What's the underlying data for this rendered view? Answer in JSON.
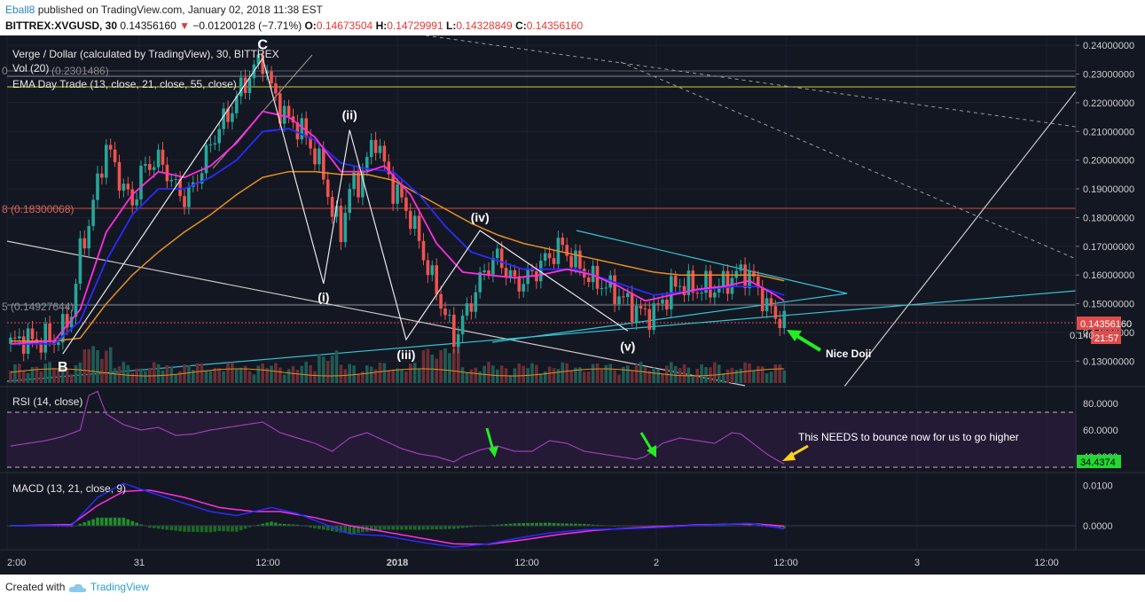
{
  "header": {
    "username": "Eball8",
    "published_text": "published on TradingView.com, January 02, 2018 11:38 EST",
    "symbol_line": "BITTREX:XVGUSD, 30",
    "last_price": "0.14356160",
    "change_arrow": "▼",
    "change": "−0.01200128 (−7.71%)",
    "o_label": "O:",
    "o_value": "0.14673504",
    "h_label": "H:",
    "h_value": "0.14729991",
    "l_label": "L:",
    "l_value": "0.14328849",
    "c_label": "C:",
    "c_value": "0.14356160"
  },
  "footer": {
    "created_with": "Created with",
    "brand": "TradingView"
  },
  "legend": {
    "main": "Verge / Dollar (calculated by TradingView), 30, BITTREX",
    "vol": "Vol (20)",
    "ema": "EMA Day Trade (13, close, 21, close, 55, close)",
    "rsi": "RSI (14, close)",
    "macd": "MACD (13, 21, close, 9)"
  },
  "fib_labels": {
    "top": "(0.2301486)",
    "top_prefix": "0",
    "mid": "(0.18300068)",
    "mid_prefix": "8",
    "low": "(0.14927644)",
    "low_prefix": "5"
  },
  "waves": {
    "B": "B",
    "C": "C",
    "i": "(i)",
    "ii": "(ii)",
    "iii": "(iii)",
    "iv": "(iv)",
    "v": "(v)"
  },
  "annotations": {
    "doji": "Nice Doji",
    "rsi_note": "This NEEDS to bounce now for us to go higher"
  },
  "price_axis": {
    "ticks": [
      "0.24000000",
      "0.23000000",
      "0.22000000",
      "0.21000000",
      "0.20000000",
      "0.19000000",
      "0.18000000",
      "0.17000000",
      "0.16000000",
      "0.15000000",
      "0.14000000",
      "0.13000000"
    ],
    "current_price": "0.14356160",
    "countdown": "21:57",
    "partial_tick": "0.140"
  },
  "rsi_axis": {
    "ticks": [
      "80.0000",
      "60.0000",
      "40.0000"
    ],
    "current": "34.4374"
  },
  "macd_axis": {
    "ticks": [
      "0.0100",
      "0.0000"
    ]
  },
  "time_axis": {
    "ticks": [
      "2:00",
      "31",
      "12:00",
      "2018",
      "12:00",
      "2",
      "12:00",
      "3",
      "12:00"
    ]
  },
  "colors": {
    "background": "#131722",
    "bull": "#26a69a",
    "bear": "#ef5350",
    "ema13": "#ff2ee0",
    "ema21": "#2a2bff",
    "ema55": "#e58f22",
    "trend_cyan": "#33c6d6",
    "rsi_line": "#9c3fb0",
    "macd_line": "#2a2bff",
    "signal_line": "#ff2ee0",
    "arrow_green": "#22ee22",
    "arrow_yellow": "#ffd21a"
  },
  "chart_data": {
    "type": "candlestick",
    "interval": "30",
    "symbol": "BITTREX:XVGUSD",
    "ylim": [
      0.123,
      0.2425
    ],
    "rsi_ylim": [
      30,
      90
    ],
    "macd_ylim": [
      -0.0055,
      0.0125
    ],
    "price_path": [
      [
        0,
        0.136
      ],
      [
        3,
        0.138
      ],
      [
        6,
        0.1365
      ],
      [
        8,
        0.138
      ],
      [
        10,
        0.137
      ],
      [
        12,
        0.141
      ],
      [
        14,
        0.147
      ],
      [
        16,
        0.168
      ],
      [
        18,
        0.178
      ],
      [
        20,
        0.192
      ],
      [
        22,
        0.205
      ],
      [
        24,
        0.198
      ],
      [
        26,
        0.19
      ],
      [
        28,
        0.185
      ],
      [
        30,
        0.195
      ],
      [
        32,
        0.199
      ],
      [
        34,
        0.2
      ],
      [
        36,
        0.196
      ],
      [
        38,
        0.19
      ],
      [
        40,
        0.187
      ],
      [
        42,
        0.19
      ],
      [
        44,
        0.198
      ],
      [
        46,
        0.205
      ],
      [
        48,
        0.212
      ],
      [
        50,
        0.215
      ],
      [
        52,
        0.222
      ],
      [
        54,
        0.227
      ],
      [
        56,
        0.232
      ],
      [
        58,
        0.235
      ],
      [
        60,
        0.225
      ],
      [
        62,
        0.218
      ],
      [
        64,
        0.214
      ],
      [
        66,
        0.212
      ],
      [
        68,
        0.208
      ],
      [
        70,
        0.202
      ],
      [
        72,
        0.195
      ],
      [
        74,
        0.182
      ],
      [
        76,
        0.175
      ],
      [
        78,
        0.19
      ],
      [
        80,
        0.192
      ],
      [
        82,
        0.2
      ],
      [
        84,
        0.208
      ],
      [
        86,
        0.198
      ],
      [
        88,
        0.19
      ],
      [
        90,
        0.186
      ],
      [
        92,
        0.18
      ],
      [
        94,
        0.172
      ],
      [
        96,
        0.162
      ],
      [
        98,
        0.155
      ],
      [
        100,
        0.146
      ],
      [
        102,
        0.138
      ],
      [
        104,
        0.144
      ],
      [
        106,
        0.151
      ],
      [
        108,
        0.158
      ],
      [
        110,
        0.164
      ],
      [
        112,
        0.166
      ],
      [
        114,
        0.162
      ],
      [
        116,
        0.157
      ],
      [
        118,
        0.158
      ],
      [
        120,
        0.16
      ],
      [
        122,
        0.164
      ],
      [
        124,
        0.166
      ],
      [
        126,
        0.17
      ],
      [
        128,
        0.168
      ],
      [
        130,
        0.164
      ],
      [
        132,
        0.161
      ],
      [
        134,
        0.158
      ],
      [
        136,
        0.157
      ],
      [
        138,
        0.155
      ],
      [
        140,
        0.153
      ],
      [
        142,
        0.15
      ],
      [
        144,
        0.148
      ],
      [
        146,
        0.146
      ],
      [
        148,
        0.147
      ],
      [
        150,
        0.151
      ],
      [
        152,
        0.155
      ],
      [
        154,
        0.157
      ],
      [
        156,
        0.156
      ],
      [
        158,
        0.155
      ],
      [
        160,
        0.156
      ],
      [
        162,
        0.155
      ],
      [
        164,
        0.157
      ],
      [
        166,
        0.159
      ],
      [
        168,
        0.161
      ],
      [
        170,
        0.16
      ],
      [
        172,
        0.155
      ],
      [
        174,
        0.149
      ],
      [
        176,
        0.146
      ],
      [
        178,
        0.1436
      ]
    ],
    "ema13": [
      [
        0,
        0.136
      ],
      [
        10,
        0.137
      ],
      [
        16,
        0.148
      ],
      [
        22,
        0.175
      ],
      [
        28,
        0.188
      ],
      [
        34,
        0.196
      ],
      [
        40,
        0.194
      ],
      [
        46,
        0.198
      ],
      [
        52,
        0.206
      ],
      [
        58,
        0.217
      ],
      [
        64,
        0.215
      ],
      [
        70,
        0.208
      ],
      [
        76,
        0.196
      ],
      [
        82,
        0.196
      ],
      [
        86,
        0.198
      ],
      [
        92,
        0.188
      ],
      [
        98,
        0.171
      ],
      [
        104,
        0.161
      ],
      [
        110,
        0.16
      ],
      [
        116,
        0.159
      ],
      [
        122,
        0.16
      ],
      [
        128,
        0.162
      ],
      [
        134,
        0.16
      ],
      [
        140,
        0.156
      ],
      [
        146,
        0.151
      ],
      [
        152,
        0.153
      ],
      [
        158,
        0.155
      ],
      [
        164,
        0.156
      ],
      [
        170,
        0.158
      ],
      [
        176,
        0.153
      ],
      [
        178,
        0.151
      ]
    ],
    "ema21": [
      [
        0,
        0.136
      ],
      [
        10,
        0.136
      ],
      [
        16,
        0.144
      ],
      [
        22,
        0.165
      ],
      [
        28,
        0.181
      ],
      [
        34,
        0.19
      ],
      [
        40,
        0.19
      ],
      [
        46,
        0.194
      ],
      [
        52,
        0.2
      ],
      [
        58,
        0.21
      ],
      [
        64,
        0.211
      ],
      [
        70,
        0.207
      ],
      [
        76,
        0.199
      ],
      [
        82,
        0.197
      ],
      [
        88,
        0.196
      ],
      [
        94,
        0.188
      ],
      [
        100,
        0.177
      ],
      [
        106,
        0.168
      ],
      [
        112,
        0.165
      ],
      [
        118,
        0.162
      ],
      [
        124,
        0.162
      ],
      [
        130,
        0.162
      ],
      [
        136,
        0.159
      ],
      [
        142,
        0.156
      ],
      [
        148,
        0.153
      ],
      [
        154,
        0.154
      ],
      [
        160,
        0.155
      ],
      [
        166,
        0.156
      ],
      [
        172,
        0.156
      ],
      [
        178,
        0.153
      ]
    ],
    "ema55": [
      [
        0,
        0.137
      ],
      [
        10,
        0.137
      ],
      [
        16,
        0.138
      ],
      [
        22,
        0.15
      ],
      [
        28,
        0.16
      ],
      [
        34,
        0.168
      ],
      [
        40,
        0.175
      ],
      [
        46,
        0.181
      ],
      [
        52,
        0.188
      ],
      [
        58,
        0.194
      ],
      [
        64,
        0.196
      ],
      [
        70,
        0.196
      ],
      [
        76,
        0.195
      ],
      [
        82,
        0.195
      ],
      [
        88,
        0.193
      ],
      [
        94,
        0.188
      ],
      [
        100,
        0.183
      ],
      [
        106,
        0.178
      ],
      [
        112,
        0.174
      ],
      [
        118,
        0.171
      ],
      [
        124,
        0.169
      ],
      [
        130,
        0.167
      ],
      [
        136,
        0.165
      ],
      [
        142,
        0.163
      ],
      [
        148,
        0.161
      ],
      [
        154,
        0.16
      ],
      [
        160,
        0.16
      ],
      [
        166,
        0.16
      ],
      [
        172,
        0.16
      ],
      [
        178,
        0.158
      ]
    ],
    "rsi": [
      [
        0,
        48
      ],
      [
        4,
        50
      ],
      [
        8,
        52
      ],
      [
        12,
        55
      ],
      [
        16,
        60
      ],
      [
        18,
        86
      ],
      [
        20,
        89
      ],
      [
        22,
        72
      ],
      [
        26,
        64
      ],
      [
        30,
        60
      ],
      [
        34,
        62
      ],
      [
        38,
        56
      ],
      [
        42,
        57
      ],
      [
        46,
        60
      ],
      [
        50,
        62
      ],
      [
        54,
        64
      ],
      [
        58,
        66
      ],
      [
        62,
        58
      ],
      [
        66,
        54
      ],
      [
        70,
        50
      ],
      [
        74,
        44
      ],
      [
        78,
        54
      ],
      [
        82,
        58
      ],
      [
        86,
        52
      ],
      [
        90,
        46
      ],
      [
        94,
        42
      ],
      [
        98,
        40
      ],
      [
        100,
        38
      ],
      [
        102,
        36
      ],
      [
        104,
        40
      ],
      [
        108,
        45
      ],
      [
        112,
        48
      ],
      [
        116,
        44
      ],
      [
        120,
        44
      ],
      [
        124,
        52
      ],
      [
        128,
        50
      ],
      [
        132,
        44
      ],
      [
        136,
        42
      ],
      [
        140,
        40
      ],
      [
        144,
        38
      ],
      [
        146,
        40
      ],
      [
        150,
        50
      ],
      [
        154,
        54
      ],
      [
        158,
        52
      ],
      [
        162,
        50
      ],
      [
        166,
        58
      ],
      [
        168,
        57
      ],
      [
        170,
        52
      ],
      [
        174,
        42
      ],
      [
        176,
        38
      ],
      [
        178,
        34.4
      ]
    ],
    "macd": [
      [
        0,
        0.0
      ],
      [
        14,
        0.0
      ],
      [
        20,
        0.007
      ],
      [
        26,
        0.0105
      ],
      [
        30,
        0.009
      ],
      [
        40,
        0.0055
      ],
      [
        46,
        0.0035
      ],
      [
        52,
        0.0025
      ],
      [
        60,
        0.0045
      ],
      [
        66,
        0.003
      ],
      [
        72,
        0.0005
      ],
      [
        78,
        -0.002
      ],
      [
        86,
        -0.0025
      ],
      [
        94,
        -0.004
      ],
      [
        102,
        -0.0053
      ],
      [
        110,
        -0.0045
      ],
      [
        116,
        -0.0032
      ],
      [
        124,
        -0.0018
      ],
      [
        132,
        -0.001
      ],
      [
        140,
        -0.0008
      ],
      [
        148,
        -0.0005
      ],
      [
        156,
        0.0
      ],
      [
        164,
        0.0003
      ],
      [
        170,
        0.0006
      ],
      [
        176,
        -0.0004
      ],
      [
        178,
        -0.0008
      ]
    ],
    "signal": [
      [
        0,
        0.0
      ],
      [
        14,
        0.0003
      ],
      [
        20,
        0.005
      ],
      [
        26,
        0.0085
      ],
      [
        32,
        0.0088
      ],
      [
        40,
        0.007
      ],
      [
        48,
        0.0045
      ],
      [
        56,
        0.0035
      ],
      [
        62,
        0.0035
      ],
      [
        70,
        0.002
      ],
      [
        78,
        0.0
      ],
      [
        86,
        -0.0015
      ],
      [
        94,
        -0.003
      ],
      [
        102,
        -0.0045
      ],
      [
        110,
        -0.0046
      ],
      [
        118,
        -0.0035
      ],
      [
        126,
        -0.0022
      ],
      [
        134,
        -0.0012
      ],
      [
        142,
        -0.0006
      ],
      [
        150,
        -0.0002
      ],
      [
        158,
        0.0002
      ],
      [
        166,
        0.0004
      ],
      [
        172,
        0.0004
      ],
      [
        178,
        -0.0001
      ]
    ],
    "wave_points": {
      "B": [
        12,
        0.1325
      ],
      "C": [
        58,
        0.2355
      ],
      "i": [
        72,
        0.157
      ],
      "ii": [
        78,
        0.2105
      ],
      "iii": [
        91,
        0.1375
      ],
      "iv": [
        108,
        0.1755
      ],
      "v": [
        142,
        0.1405
      ]
    }
  }
}
